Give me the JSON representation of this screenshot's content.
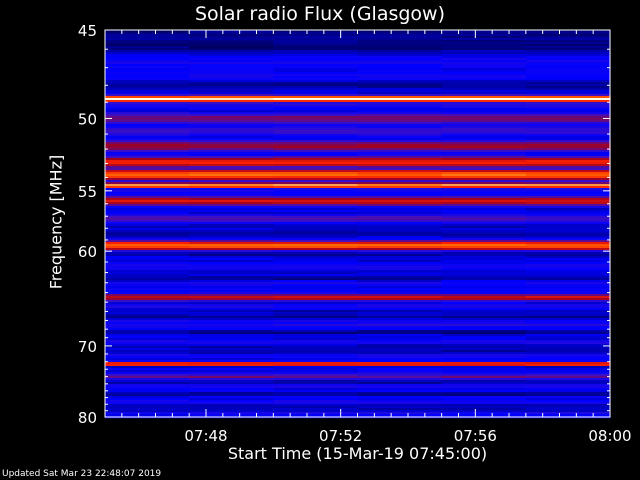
{
  "page": {
    "updated": "Updated Sat Mar 23 22:48:07 2019"
  },
  "chart_data": {
    "type": "heatmap",
    "title": "Solar radio Flux (Glasgow)",
    "xlabel": "Start Time (15-Mar-19 07:45:00)",
    "ylabel": "Frequency [MHz]",
    "x_range_minutes": [
      0,
      15
    ],
    "x_ticks": [
      {
        "minute": 3,
        "label": "07:48"
      },
      {
        "minute": 7,
        "label": "07:52"
      },
      {
        "minute": 11,
        "label": "07:56"
      },
      {
        "minute": 15,
        "label": "08:00"
      }
    ],
    "ylim_mhz": [
      45,
      80
    ],
    "y_scale": "reciprocal",
    "y_ticks": [
      45,
      50,
      55,
      60,
      70,
      80
    ],
    "colormap": [
      "#000060",
      "#0000ff",
      "#4010c0",
      "#a00020",
      "#ff2000",
      "#ff6a00",
      "#ffffe8"
    ],
    "bands": [
      {
        "mhz": 45.4,
        "level": 0.05
      },
      {
        "mhz": 46.6,
        "level": 0.2
      },
      {
        "mhz": 48.8,
        "level": 1.0
      },
      {
        "mhz": 50.0,
        "level": 0.42
      },
      {
        "mhz": 50.8,
        "level": 0.3
      },
      {
        "mhz": 51.8,
        "level": 0.5
      },
      {
        "mhz": 52.9,
        "level": 0.66
      },
      {
        "mhz": 53.8,
        "level": 0.82
      },
      {
        "mhz": 54.6,
        "level": 0.9
      },
      {
        "mhz": 55.8,
        "level": 0.6
      },
      {
        "mhz": 57.2,
        "level": 0.35
      },
      {
        "mhz": 59.5,
        "level": 0.82
      },
      {
        "mhz": 61.5,
        "level": 0.22
      },
      {
        "mhz": 64.5,
        "level": 0.58
      },
      {
        "mhz": 67.5,
        "level": 0.25
      },
      {
        "mhz": 72.3,
        "level": 0.9
      },
      {
        "mhz": 74.0,
        "level": 0.4
      },
      {
        "mhz": 77.5,
        "level": 0.2
      }
    ]
  }
}
